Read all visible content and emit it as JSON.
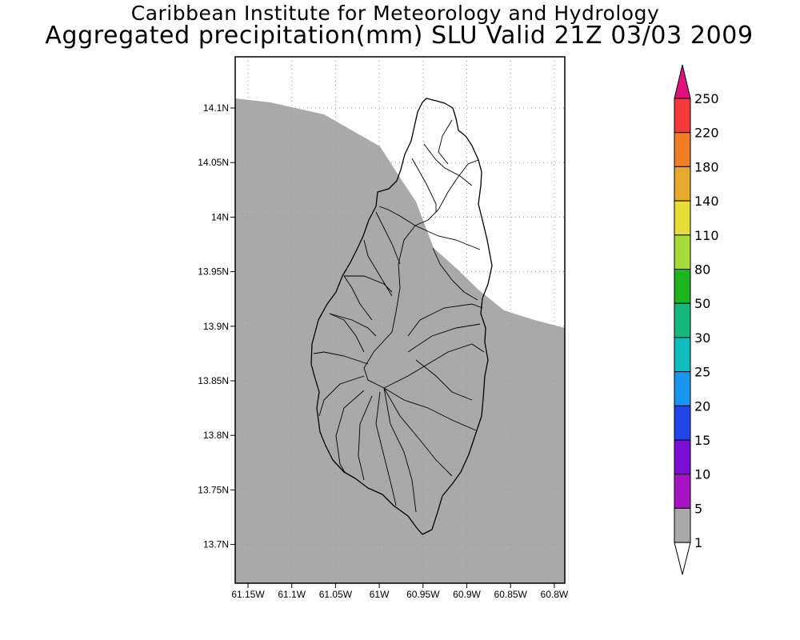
{
  "title": "Caribbean Institute for Meteorology and Hydrology",
  "subtitle": "Aggregated precipitation(mm) SLU Valid 21Z 03/03 2009",
  "map": {
    "region": "Saint Lucia",
    "lon_ticks": [
      "61.15W",
      "61.1W",
      "61.05W",
      "61W",
      "60.95W",
      "60.9W",
      "60.85W",
      "60.8W"
    ],
    "lat_ticks": [
      "14.1N",
      "14.05N",
      "14N",
      "13.95N",
      "13.9N",
      "13.85N",
      "13.8N",
      "13.75N",
      "13.7N"
    ],
    "grid": true,
    "colors": {
      "shaded": "#a9a9a9",
      "unshaded": "#ffffff",
      "coastline": "#000000"
    }
  },
  "colorbar": {
    "labels": [
      "250",
      "220",
      "180",
      "140",
      "110",
      "80",
      "50",
      "30",
      "25",
      "20",
      "15",
      "10",
      "5",
      "1"
    ],
    "colors": [
      "#e0117f",
      "#f23a3a",
      "#f07d24",
      "#e6a92e",
      "#e6de37",
      "#a6db3a",
      "#1db51d",
      "#14b87e",
      "#12bdbd",
      "#1896f0",
      "#2245e8",
      "#7c0fd6",
      "#a712c4",
      "#a9a9a9",
      "#ffffff"
    ]
  }
}
